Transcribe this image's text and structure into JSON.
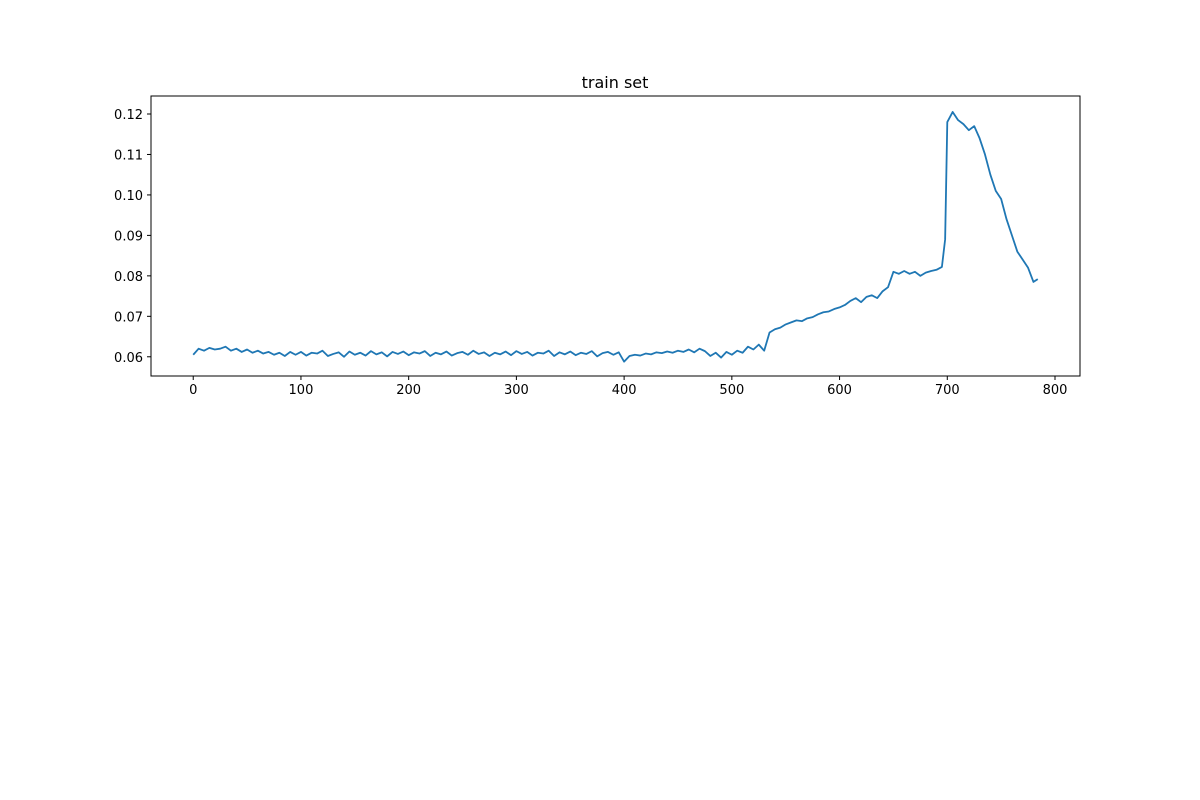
{
  "chart_data": {
    "type": "line",
    "title": "train set",
    "color": "#1f77b4",
    "x": [
      0,
      5,
      10,
      15,
      20,
      25,
      30,
      35,
      40,
      45,
      50,
      55,
      60,
      65,
      70,
      75,
      80,
      85,
      90,
      95,
      100,
      105,
      110,
      115,
      120,
      125,
      130,
      135,
      140,
      145,
      150,
      155,
      160,
      165,
      170,
      175,
      180,
      185,
      190,
      195,
      200,
      205,
      210,
      215,
      220,
      225,
      230,
      235,
      240,
      245,
      250,
      255,
      260,
      265,
      270,
      275,
      280,
      285,
      290,
      295,
      300,
      305,
      310,
      315,
      320,
      325,
      330,
      335,
      340,
      345,
      350,
      355,
      360,
      365,
      370,
      375,
      380,
      385,
      390,
      395,
      400,
      405,
      410,
      415,
      420,
      425,
      430,
      435,
      440,
      445,
      450,
      455,
      460,
      465,
      470,
      475,
      480,
      485,
      490,
      495,
      500,
      505,
      510,
      515,
      520,
      525,
      530,
      535,
      540,
      545,
      550,
      555,
      560,
      565,
      570,
      575,
      580,
      585,
      590,
      595,
      600,
      605,
      610,
      615,
      620,
      625,
      630,
      635,
      640,
      645,
      650,
      655,
      660,
      665,
      670,
      675,
      680,
      685,
      690,
      695,
      698,
      700,
      705,
      710,
      715,
      720,
      725,
      730,
      735,
      740,
      745,
      750,
      755,
      760,
      765,
      770,
      775,
      780,
      784
    ],
    "values": [
      0.0605,
      0.062,
      0.0615,
      0.0622,
      0.0618,
      0.062,
      0.0625,
      0.0615,
      0.062,
      0.0612,
      0.0618,
      0.061,
      0.0615,
      0.0608,
      0.0612,
      0.0605,
      0.061,
      0.0602,
      0.0612,
      0.0605,
      0.0612,
      0.0603,
      0.061,
      0.0608,
      0.0615,
      0.0602,
      0.0607,
      0.0611,
      0.06,
      0.0613,
      0.0605,
      0.061,
      0.0603,
      0.0614,
      0.0606,
      0.0611,
      0.0601,
      0.0612,
      0.0607,
      0.0613,
      0.0604,
      0.0611,
      0.0608,
      0.0614,
      0.0602,
      0.061,
      0.0606,
      0.0613,
      0.0603,
      0.0609,
      0.0612,
      0.0605,
      0.0615,
      0.0607,
      0.0611,
      0.0602,
      0.061,
      0.0606,
      0.0613,
      0.0604,
      0.0614,
      0.0607,
      0.0612,
      0.0603,
      0.061,
      0.0608,
      0.0615,
      0.0602,
      0.0611,
      0.0606,
      0.0613,
      0.0604,
      0.061,
      0.0607,
      0.0614,
      0.0601,
      0.0609,
      0.0612,
      0.0605,
      0.0611,
      0.0588,
      0.0602,
      0.0605,
      0.0603,
      0.0608,
      0.0606,
      0.0611,
      0.0609,
      0.0613,
      0.061,
      0.0615,
      0.0612,
      0.0618,
      0.0611,
      0.062,
      0.0614,
      0.0602,
      0.061,
      0.0598,
      0.0612,
      0.0605,
      0.0615,
      0.061,
      0.0625,
      0.0618,
      0.063,
      0.0615,
      0.066,
      0.0668,
      0.0672,
      0.068,
      0.0685,
      0.069,
      0.0688,
      0.0695,
      0.0698,
      0.0705,
      0.071,
      0.0712,
      0.0718,
      0.0722,
      0.0728,
      0.0738,
      0.0745,
      0.0735,
      0.0748,
      0.0752,
      0.0745,
      0.0762,
      0.0772,
      0.081,
      0.0805,
      0.0812,
      0.0805,
      0.081,
      0.08,
      0.0808,
      0.0812,
      0.0815,
      0.0822,
      0.089,
      0.118,
      0.1205,
      0.1185,
      0.1175,
      0.116,
      0.117,
      0.114,
      0.11,
      0.105,
      0.101,
      0.099,
      0.094,
      0.09,
      0.086,
      0.084,
      0.082,
      0.0785,
      0.0792
    ],
    "xlim": [
      -39.2,
      823.2
    ],
    "xticks": [
      0,
      100,
      200,
      300,
      400,
      500,
      600,
      700,
      800
    ],
    "ylim": [
      0.05525,
      0.12445
    ],
    "yticks": [
      {
        "value": 0.06,
        "label": "0.06"
      },
      {
        "value": 0.07,
        "label": "0.07"
      },
      {
        "value": 0.08,
        "label": "0.08"
      },
      {
        "value": 0.09,
        "label": "0.09"
      },
      {
        "value": 0.1,
        "label": "0.10"
      },
      {
        "value": 0.11,
        "label": "0.11"
      },
      {
        "value": 0.12,
        "label": "0.12"
      }
    ]
  }
}
